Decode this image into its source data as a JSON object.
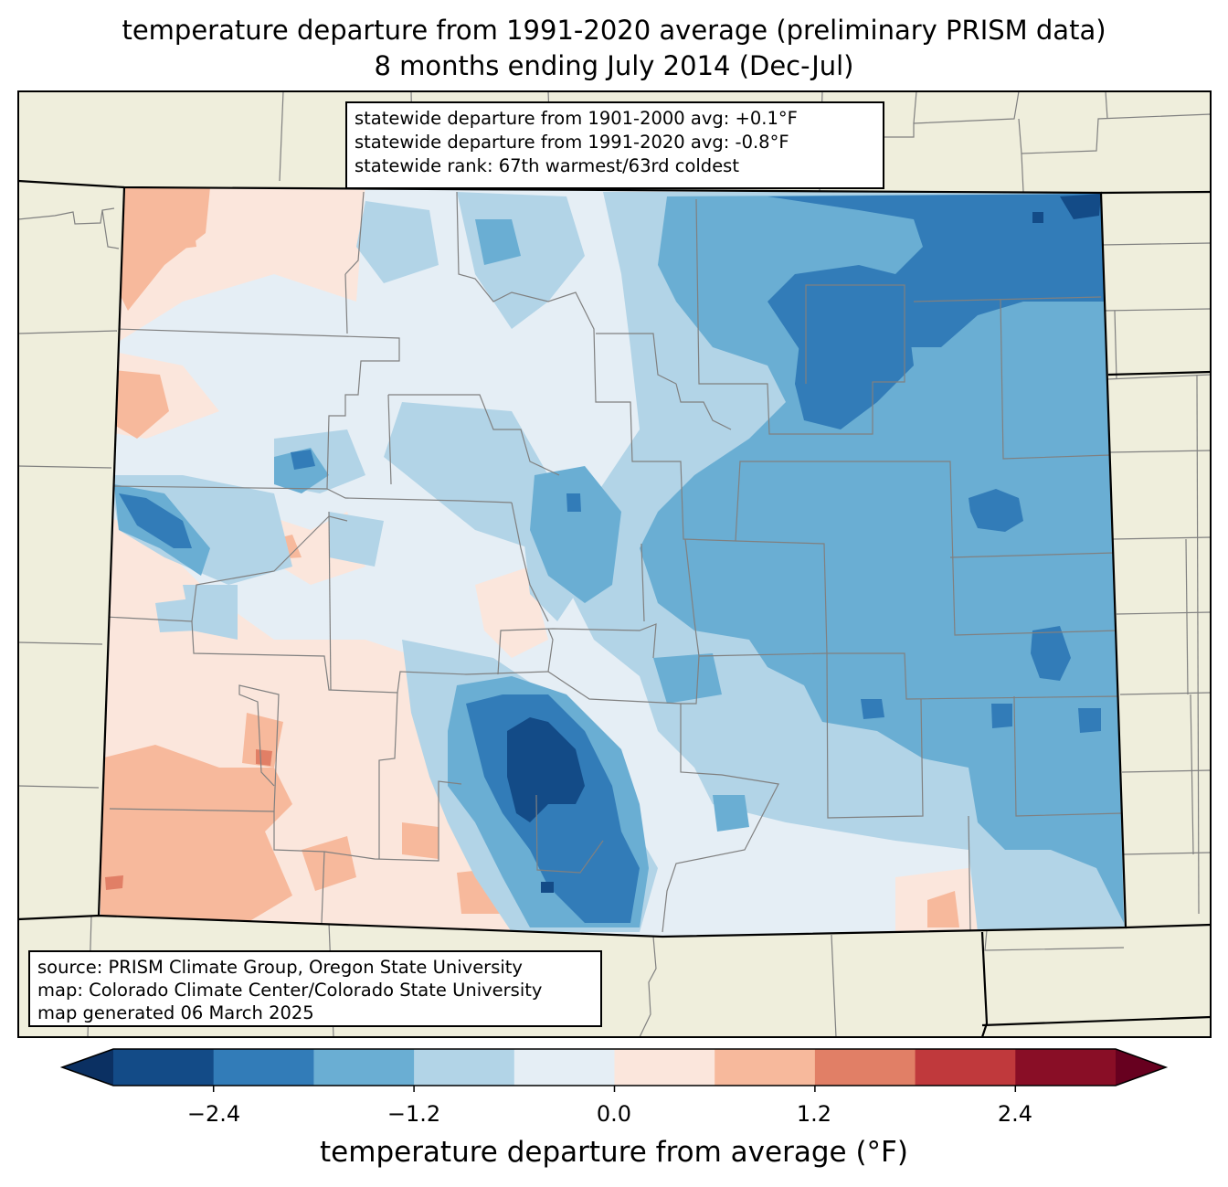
{
  "title": {
    "line1": "temperature departure from 1991-2020 average (preliminary PRISM data)",
    "line2": "8 months ending July 2014 (Dec-Jul)"
  },
  "stats": {
    "line1": "statewide departure from 1901-2000 avg: +0.1°F",
    "line2": "statewide departure from 1991-2020 avg: -0.8°F",
    "line3": "statewide rank: 67th warmest/63rd coldest"
  },
  "source": {
    "line1": "source: PRISM Climate Group, Oregon State University",
    "line2": "map: Colorado Climate Center/Colorado State University",
    "line3": "map generated 06 March 2025"
  },
  "colorbar": {
    "label": "temperature departure from average (°F)",
    "ticks": [
      "−2.4",
      "−1.2",
      "0.0",
      "1.2",
      "2.4"
    ],
    "bins": [
      {
        "lo": -3.0,
        "hi": -2.4,
        "color": "#134b87"
      },
      {
        "lo": -2.4,
        "hi": -1.8,
        "color": "#327cb8"
      },
      {
        "lo": -1.8,
        "hi": -1.2,
        "color": "#6aaed3"
      },
      {
        "lo": -1.2,
        "hi": -0.6,
        "color": "#b2d4e7"
      },
      {
        "lo": -0.6,
        "hi": 0.0,
        "color": "#e5eef5"
      },
      {
        "lo": 0.0,
        "hi": 0.6,
        "color": "#fbe6dc"
      },
      {
        "lo": 0.6,
        "hi": 1.2,
        "color": "#f7b99c"
      },
      {
        "lo": 1.2,
        "hi": 1.8,
        "color": "#e17f66"
      },
      {
        "lo": 1.8,
        "hi": 2.4,
        "color": "#c0393c"
      },
      {
        "lo": 2.4,
        "hi": 3.0,
        "color": "#890e26"
      }
    ],
    "under_color": "#0b3062",
    "over_color": "#67001f"
  },
  "colors": {
    "land": "#efeedc",
    "boundary": "#000000",
    "county_line": "#808080"
  }
}
